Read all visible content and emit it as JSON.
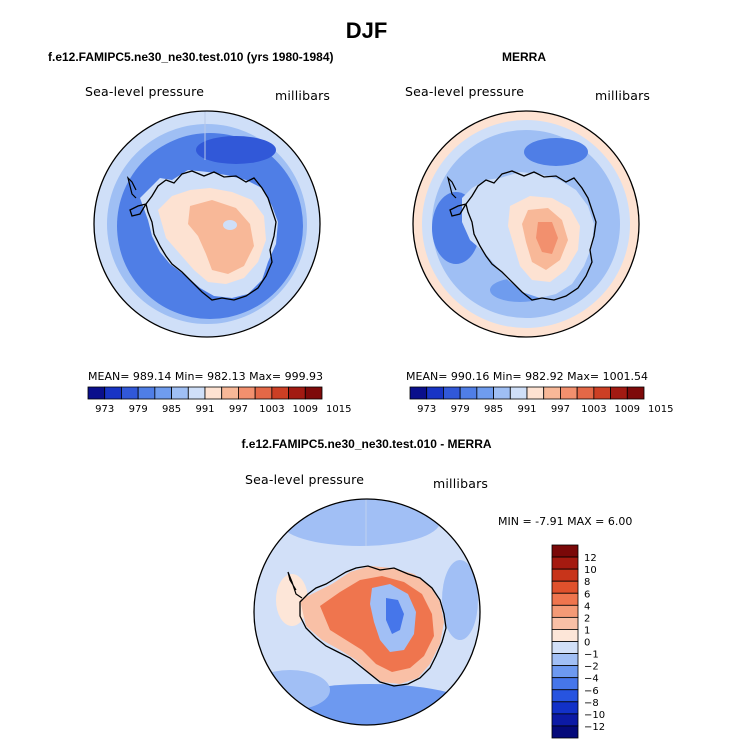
{
  "title": "DJF",
  "colors": {
    "bg": "#ffffff",
    "abs_colors": [
      "#0a0f8c",
      "#1834c4",
      "#3158d8",
      "#4f7ee6",
      "#6f9cee",
      "#9fbff4",
      "#cfdff8",
      "#fde2d2",
      "#f8b898",
      "#f2906e",
      "#e46847",
      "#cc3f24",
      "#a21a12",
      "#7e0a0a"
    ],
    "diff_colors": [
      "#050a7a",
      "#0c1aa5",
      "#1231c8",
      "#2754e0",
      "#4676ea",
      "#6d99f0",
      "#a1bff5",
      "#d2e0f8",
      "#fde6d8",
      "#f9c0a6",
      "#f49a76",
      "#ef754e",
      "#e0512c",
      "#c8341a",
      "#a51a10",
      "#7a0808"
    ]
  },
  "chart_data": [
    {
      "type": "heatmap",
      "projection": "south-polar-stereographic",
      "title": "f.e12.FAMIPC5.ne30_ne30.test.010 (yrs 1980-1984)",
      "left_label": "Sea-level pressure",
      "right_label": "millibars",
      "field": "model",
      "stats_text": "MEAN= 989.14   Min= 982.13   Max= 999.93",
      "levels": [
        973,
        976,
        979,
        982,
        985,
        988,
        991,
        994,
        997,
        1000,
        1003,
        1006,
        1009,
        1012,
        1015
      ],
      "tick_labels": [
        "973",
        "979",
        "985",
        "991",
        "997",
        "1003",
        "1009",
        "1015"
      ],
      "colorbar": "horizontal"
    },
    {
      "type": "heatmap",
      "projection": "south-polar-stereographic",
      "title": "MERRA",
      "left_label": "Sea-level pressure",
      "right_label": "millibars",
      "field": "merra",
      "stats_text": "MEAN= 990.16   Min= 982.92   Max= 1001.54",
      "levels": [
        973,
        976,
        979,
        982,
        985,
        988,
        991,
        994,
        997,
        1000,
        1003,
        1006,
        1009,
        1012,
        1015
      ],
      "tick_labels": [
        "973",
        "979",
        "985",
        "991",
        "997",
        "1003",
        "1009",
        "1015"
      ],
      "colorbar": "horizontal"
    },
    {
      "type": "heatmap",
      "projection": "south-polar-stereographic",
      "title": "f.e12.FAMIPC5.ne30_ne30.test.010 - MERRA",
      "left_label": "Sea-level pressure",
      "right_label": "millibars",
      "field": "difference",
      "stats_text": "MIN =   -7.91  MAX =     6.00",
      "levels": [
        -12,
        -10,
        -8,
        -6,
        -4,
        -2,
        -1,
        0,
        1,
        2,
        4,
        6,
        8,
        10,
        12
      ],
      "tick_labels": [
        "12",
        "10",
        "8",
        "6",
        "4",
        "2",
        "1",
        "0",
        "−1",
        "−2",
        "−4",
        "−6",
        "−8",
        "−10",
        "−12"
      ],
      "colorbar": "vertical"
    }
  ]
}
